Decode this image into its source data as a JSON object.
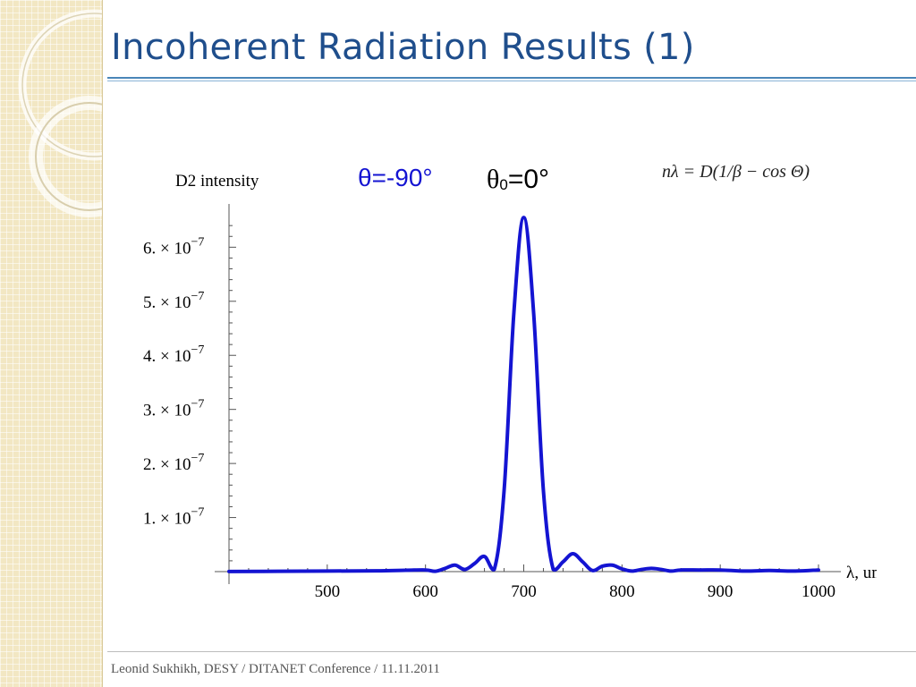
{
  "slide": {
    "title": "Incoherent Radiation Results (1)",
    "footer": "Leonid Sukhikh, DESY / DITANET Conference / 11.11.2011"
  },
  "colors": {
    "title": "#1f4e8c",
    "curve": "#1414d2",
    "angle_blue": "#1414d2",
    "angle_black": "#000000"
  },
  "annotations": {
    "theta_label": "θ=-90°",
    "theta0_symbol": "θ",
    "theta0_subscript": "0",
    "theta0_value": "=0°",
    "formula": "nλ = D(1/β − cos Θ)"
  },
  "chart_data": {
    "type": "line",
    "ylabel": "D2 intensity",
    "xlabel": "λ, um",
    "xlim": [
      400,
      1000
    ],
    "ylim": [
      0,
      6.8e-07
    ],
    "x_ticks": [
      500,
      600,
      700,
      800,
      900,
      1000
    ],
    "y_ticks": [
      {
        "value": 1e-07,
        "mantissa": "1.",
        "times": "×",
        "base": "10",
        "exponent": "−7"
      },
      {
        "value": 2e-07,
        "mantissa": "2.",
        "times": "×",
        "base": "10",
        "exponent": "−7"
      },
      {
        "value": 3e-07,
        "mantissa": "3.",
        "times": "×",
        "base": "10",
        "exponent": "−7"
      },
      {
        "value": 4e-07,
        "mantissa": "4.",
        "times": "×",
        "base": "10",
        "exponent": "−7"
      },
      {
        "value": 5e-07,
        "mantissa": "5.",
        "times": "×",
        "base": "10",
        "exponent": "−7"
      },
      {
        "value": 6e-07,
        "mantissa": "6.",
        "times": "×",
        "base": "10",
        "exponent": "−7"
      }
    ],
    "series": [
      {
        "x": [
          400,
          450,
          500,
          550,
          580,
          600,
          610,
          620,
          630,
          640,
          650,
          660,
          670,
          680,
          690,
          700,
          710,
          720,
          730,
          740,
          750,
          760,
          770,
          780,
          790,
          800,
          810,
          820,
          830,
          840,
          850,
          860,
          880,
          900,
          925,
          950,
          975,
          1000
        ],
        "y": [
          2e-10,
          6e-10,
          1e-09,
          1.5e-09,
          2.5e-09,
          3e-09,
          6e-10,
          6e-09,
          1.2e-08,
          4e-09,
          1.5e-08,
          2.8e-08,
          4e-09,
          1.5e-07,
          4.8e-07,
          6.55e-07,
          4.8e-07,
          1.5e-07,
          4e-09,
          1.8e-08,
          3.3e-08,
          1.8e-08,
          2e-09,
          1e-08,
          1.2e-08,
          5e-09,
          1e-09,
          4e-09,
          6e-09,
          4e-09,
          1e-09,
          3e-09,
          3e-09,
          3e-09,
          1e-09,
          2e-09,
          1e-09,
          3e-09
        ]
      }
    ]
  }
}
